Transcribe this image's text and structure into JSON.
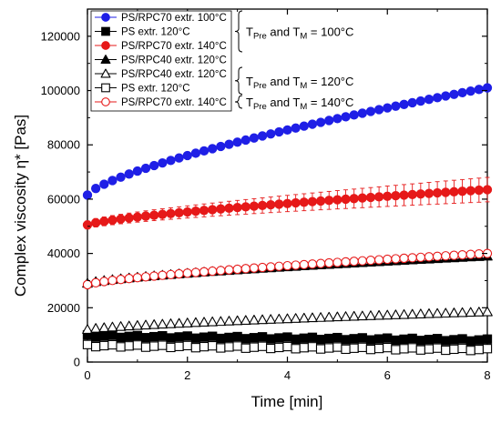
{
  "chart_data": {
    "type": "scatter",
    "xlabel": "Time [min]",
    "ylabel": "Complex viscosity η* [Pas]",
    "xlim": [
      0,
      8
    ],
    "ylim": [
      0,
      130000
    ],
    "x_ticks": [
      0,
      2,
      4,
      6,
      8
    ],
    "y_ticks": [
      0,
      20000,
      40000,
      60000,
      80000,
      100000,
      120000
    ],
    "x_tick_labels": [
      "0",
      "2",
      "4",
      "6",
      "8"
    ],
    "y_tick_labels": [
      "0",
      "20000",
      "40000",
      "60000",
      "80000",
      "100000",
      "120000"
    ],
    "grid": false,
    "legend_position": "top-left",
    "series": [
      {
        "name": "PS/RPC70 extr. 100°C",
        "color": "#1f1fe6",
        "marker": "circle",
        "filled": true,
        "start": 61500,
        "end": 101000,
        "shape": "sqrt"
      },
      {
        "name": "PS extr. 120°C",
        "color": "#000000",
        "marker": "square",
        "filled": true,
        "start": 9500,
        "end": 8000,
        "shape": "linear"
      },
      {
        "name": "PS/RPC70 extr. 140°C",
        "color": "#e61919",
        "marker": "circle",
        "filled": true,
        "start": 50500,
        "end": 63500,
        "shape": "sqrt",
        "error_start": 1500,
        "error_end": 4500
      },
      {
        "name": "PS/RPC40 extr. 120°C",
        "color": "#000000",
        "marker": "triangle",
        "filled": true,
        "start": 29000,
        "end": 39000,
        "shape": "sqrt"
      },
      {
        "name": "PS/RPC40 extr. 120°C",
        "color": "#000000",
        "marker": "triangle",
        "filled": false,
        "start": 12000,
        "end": 18500,
        "shape": "sqrt"
      },
      {
        "name": "PS extr. 120°C",
        "color": "#000000",
        "marker": "square",
        "filled": false,
        "start": 6000,
        "end": 4500,
        "shape": "linear"
      },
      {
        "name": "PS/RPC70 extr. 140°C",
        "color": "#e61919",
        "marker": "circle",
        "filled": false,
        "start": 28500,
        "end": 40000,
        "shape": "sqrt"
      }
    ],
    "annotations": [
      {
        "brace_items": [
          0,
          2
        ],
        "prefix": "T",
        "sub1": "Pre",
        "mid": " and T",
        "sub2": "M",
        "suffix": " = 100°C"
      },
      {
        "brace_items": [
          4,
          5
        ],
        "prefix": "T",
        "sub1": "Pre",
        "mid": " and T",
        "sub2": "M",
        "suffix": " = 120°C"
      },
      {
        "brace_items": [
          6,
          6
        ],
        "prefix": "T",
        "sub1": "Pre",
        "mid": " and T",
        "sub2": "M",
        "suffix": " = 140°C"
      }
    ]
  }
}
